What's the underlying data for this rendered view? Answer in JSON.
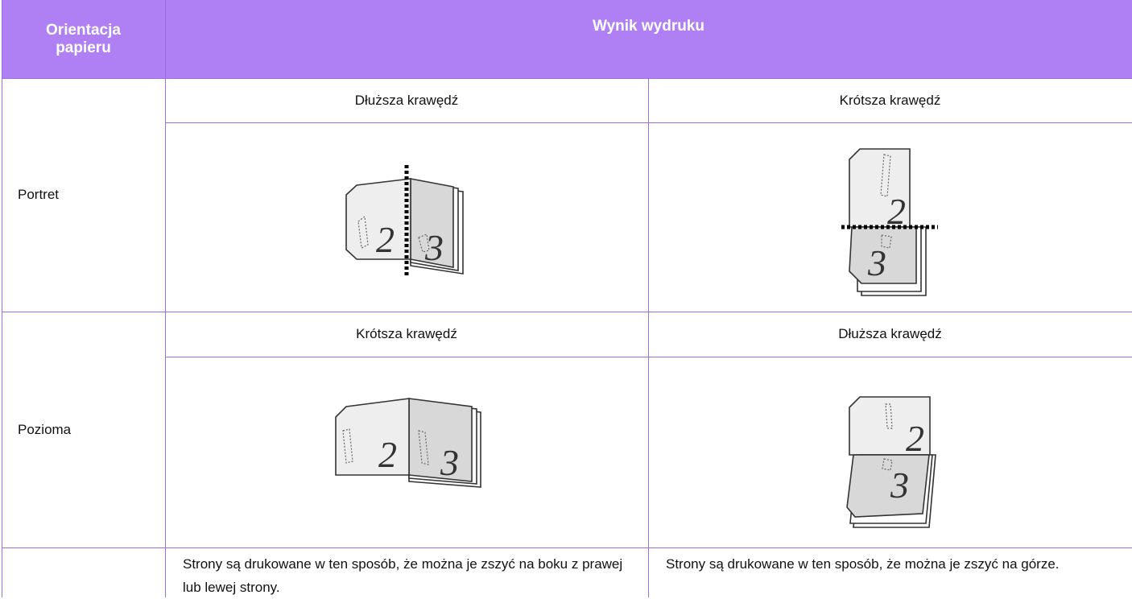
{
  "table": {
    "header": [
      "Orientacja papieru",
      "Wynik wydruku"
    ],
    "rows": [
      {
        "orientation": "Portret",
        "cells": [
          {
            "label": "Dłuższa krawędź",
            "pages": [
              "2",
              "3"
            ]
          },
          {
            "label": "Krótsza krawędź",
            "pages": [
              "2",
              "3"
            ]
          }
        ]
      },
      {
        "orientation": "Pozioma",
        "cells": [
          {
            "label": "Krótsza krawędź",
            "pages": [
              "2",
              "3"
            ]
          },
          {
            "label": "Dłuższa krawędź",
            "pages": [
              "2",
              "3"
            ]
          }
        ]
      }
    ],
    "notes": [
      "Strony są drukowane w ten sposób, że można je zszyć na boku z prawej lub lewej strony.",
      "Strony są drukowane w ten sposób, że można je zszyć na górze."
    ]
  }
}
